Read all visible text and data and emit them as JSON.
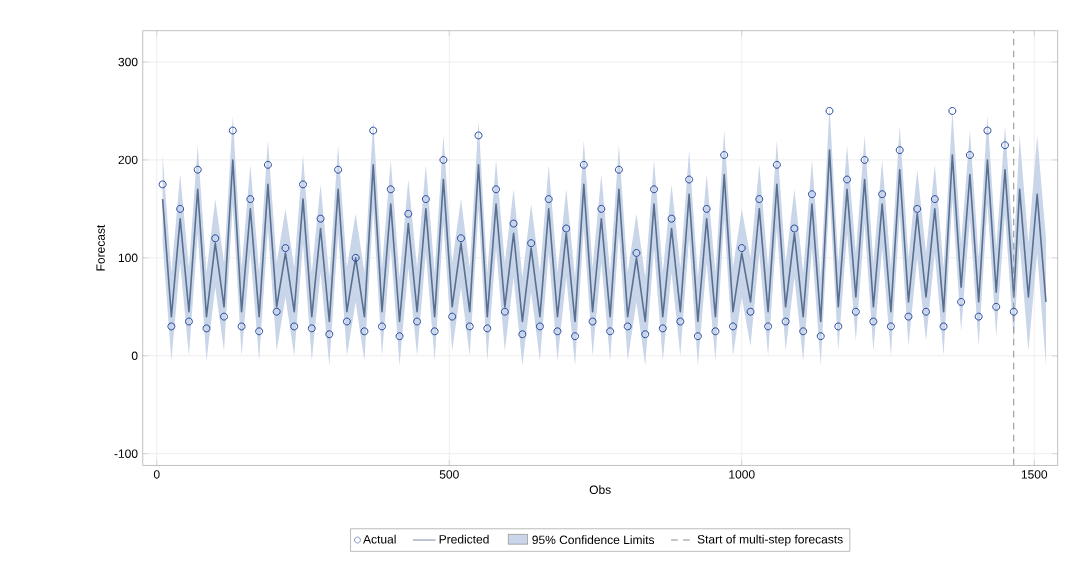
{
  "chart_data": {
    "type": "line",
    "xlabel": "Obs",
    "ylabel": "Forecast",
    "xlim": [
      -24,
      1540
    ],
    "ylim": [
      -112,
      332
    ],
    "xticks": [
      0,
      500,
      1000,
      1500
    ],
    "yticks": [
      -100,
      0,
      100,
      200,
      300
    ],
    "grid": true,
    "legend": "bottom",
    "annotations": [
      "95% Confidence Limits"
    ],
    "series": [
      {
        "name": "Actual",
        "type": "scatter",
        "marker": "circle",
        "color": "#1a3d99",
        "x": [
          10,
          25,
          40,
          55,
          70,
          85,
          100,
          115,
          130,
          145,
          160,
          175,
          190,
          205,
          220,
          235,
          250,
          265,
          280,
          295,
          310,
          325,
          340,
          355,
          370,
          385,
          400,
          415,
          430,
          445,
          460,
          475,
          490,
          505,
          520,
          535,
          550,
          565,
          580,
          595,
          610,
          625,
          640,
          655,
          670,
          685,
          700,
          715,
          730,
          745,
          760,
          775,
          790,
          805,
          820,
          835,
          850,
          865,
          880,
          895,
          910,
          925,
          940,
          955,
          970,
          985,
          1000,
          1015,
          1030,
          1045,
          1060,
          1075,
          1090,
          1105,
          1120,
          1135,
          1150,
          1165,
          1180,
          1195,
          1210,
          1225,
          1240,
          1255,
          1270,
          1285,
          1300,
          1315,
          1330,
          1345,
          1360,
          1375,
          1390,
          1405,
          1420,
          1435,
          1450,
          1465
        ],
        "values": [
          175,
          30,
          150,
          35,
          190,
          28,
          120,
          40,
          230,
          30,
          160,
          25,
          195,
          45,
          110,
          30,
          175,
          28,
          140,
          22,
          190,
          35,
          100,
          25,
          230,
          30,
          170,
          20,
          145,
          35,
          160,
          25,
          200,
          40,
          120,
          30,
          225,
          28,
          170,
          45,
          135,
          22,
          115,
          30,
          160,
          25,
          130,
          20,
          195,
          35,
          150,
          25,
          190,
          30,
          105,
          22,
          170,
          28,
          140,
          35,
          180,
          20,
          150,
          25,
          205,
          30,
          110,
          45,
          160,
          30,
          195,
          35,
          130,
          25,
          165,
          20,
          250,
          30,
          180,
          45,
          200,
          35,
          165,
          30,
          210,
          40,
          150,
          45,
          160,
          30,
          250,
          55,
          205,
          40,
          230,
          50,
          215,
          45
        ]
      },
      {
        "name": "Predicted",
        "marker": "none",
        "line_style": "solid",
        "color": "#5a7091",
        "x": [
          10,
          25,
          40,
          55,
          70,
          85,
          100,
          115,
          130,
          145,
          160,
          175,
          190,
          205,
          220,
          235,
          250,
          265,
          280,
          295,
          310,
          325,
          340,
          355,
          370,
          385,
          400,
          415,
          430,
          445,
          460,
          475,
          490,
          505,
          520,
          535,
          550,
          565,
          580,
          595,
          610,
          625,
          640,
          655,
          670,
          685,
          700,
          715,
          730,
          745,
          760,
          775,
          790,
          805,
          820,
          835,
          850,
          865,
          880,
          895,
          910,
          925,
          940,
          955,
          970,
          985,
          1000,
          1015,
          1030,
          1045,
          1060,
          1075,
          1090,
          1105,
          1120,
          1135,
          1150,
          1165,
          1180,
          1195,
          1210,
          1225,
          1240,
          1255,
          1270,
          1285,
          1300,
          1315,
          1330,
          1345,
          1360,
          1375,
          1390,
          1405,
          1420,
          1435,
          1450,
          1465,
          1475,
          1490,
          1505,
          1520
        ],
        "values": [
          160,
          40,
          140,
          45,
          170,
          40,
          115,
          50,
          200,
          45,
          150,
          40,
          175,
          50,
          105,
          45,
          160,
          40,
          130,
          35,
          170,
          45,
          100,
          40,
          195,
          45,
          155,
          35,
          135,
          45,
          150,
          40,
          180,
          50,
          115,
          45,
          195,
          40,
          155,
          50,
          125,
          35,
          110,
          40,
          150,
          40,
          125,
          35,
          175,
          45,
          140,
          40,
          170,
          40,
          100,
          35,
          155,
          40,
          130,
          45,
          165,
          35,
          140,
          40,
          185,
          45,
          105,
          55,
          150,
          45,
          175,
          50,
          125,
          40,
          155,
          35,
          210,
          50,
          170,
          60,
          180,
          50,
          155,
          45,
          190,
          55,
          145,
          60,
          150,
          45,
          205,
          70,
          185,
          55,
          200,
          65,
          190,
          60,
          170,
          60,
          165,
          55
        ],
        "lower": [
          115,
          -5,
          95,
          0,
          125,
          -5,
          70,
          5,
          155,
          0,
          105,
          -5,
          130,
          5,
          60,
          0,
          115,
          -5,
          85,
          -10,
          125,
          0,
          55,
          -5,
          150,
          0,
          110,
          -10,
          90,
          0,
          105,
          -5,
          135,
          5,
          70,
          0,
          150,
          -5,
          110,
          5,
          80,
          -10,
          65,
          -5,
          105,
          -5,
          80,
          -10,
          130,
          0,
          95,
          -5,
          125,
          -5,
          55,
          -10,
          110,
          -5,
          85,
          0,
          120,
          -10,
          95,
          -5,
          140,
          0,
          60,
          10,
          105,
          0,
          130,
          5,
          80,
          -5,
          110,
          -10,
          165,
          5,
          125,
          15,
          135,
          5,
          110,
          0,
          145,
          10,
          100,
          15,
          105,
          0,
          160,
          25,
          140,
          10,
          155,
          20,
          145,
          15,
          115,
          5,
          105,
          -10
        ],
        "upper": [
          205,
          85,
          185,
          90,
          215,
          85,
          160,
          95,
          245,
          90,
          195,
          85,
          220,
          95,
          150,
          90,
          205,
          85,
          175,
          80,
          215,
          90,
          145,
          85,
          240,
          90,
          200,
          80,
          180,
          90,
          195,
          85,
          225,
          95,
          160,
          90,
          240,
          85,
          200,
          95,
          170,
          80,
          155,
          85,
          195,
          85,
          170,
          80,
          220,
          90,
          185,
          85,
          215,
          85,
          145,
          80,
          200,
          85,
          175,
          90,
          210,
          80,
          185,
          85,
          230,
          90,
          150,
          100,
          195,
          90,
          220,
          95,
          170,
          85,
          200,
          80,
          255,
          95,
          215,
          105,
          225,
          95,
          200,
          90,
          235,
          100,
          190,
          105,
          195,
          90,
          250,
          115,
          230,
          100,
          245,
          110,
          235,
          105,
          225,
          115,
          225,
          120
        ]
      }
    ],
    "ref_lines": [
      {
        "axis": "x",
        "value": 1465,
        "label": "Start of multi-step forecasts",
        "color": "#8c8c8c",
        "line_style": "dashed"
      }
    ]
  }
}
